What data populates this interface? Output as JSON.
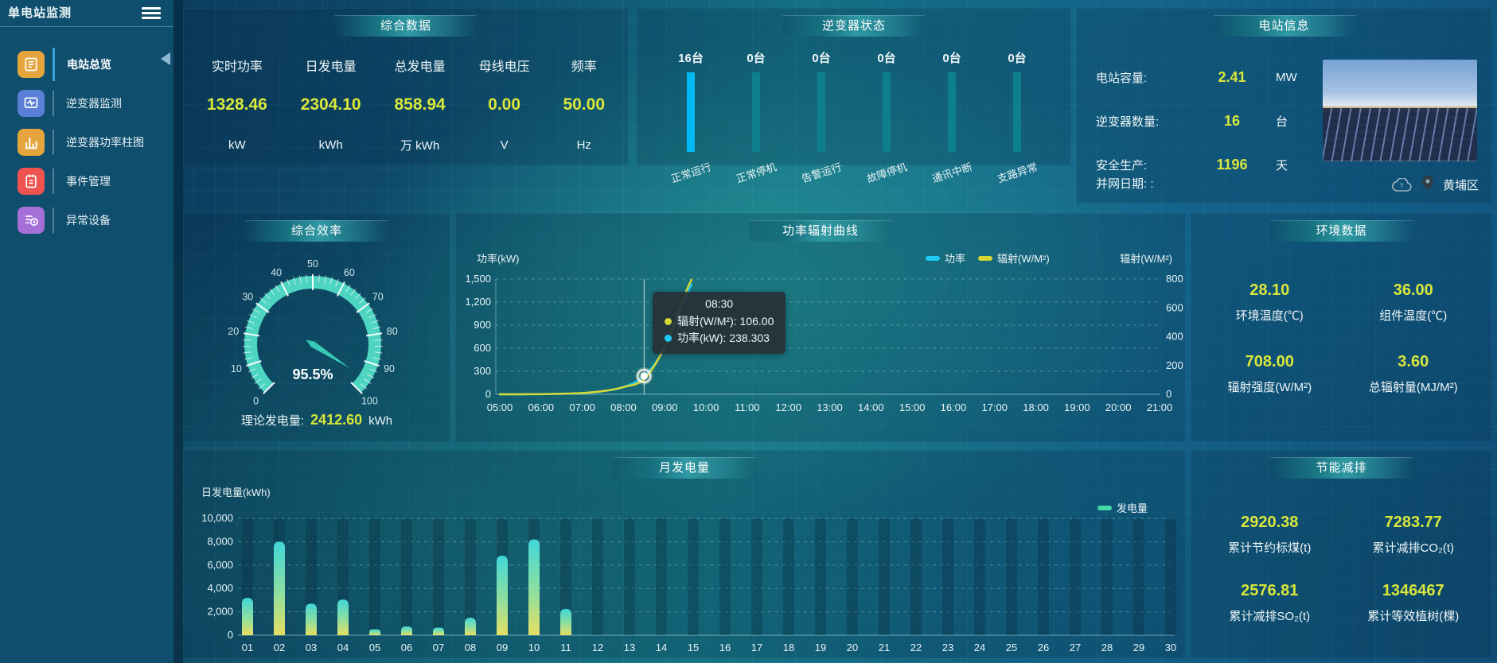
{
  "app": {
    "title": "单电站监测"
  },
  "sidebar": {
    "items": [
      {
        "id": "overview",
        "label": "电站总览",
        "icon": "doc-icon",
        "color": "#e5a43c",
        "active": true
      },
      {
        "id": "inverter-monitor",
        "label": "逆变器监测",
        "icon": "monitor-icon",
        "color": "#5a7fd6",
        "active": false
      },
      {
        "id": "inverter-power",
        "label": "逆变器功率柱图",
        "icon": "barchart-icon",
        "color": "#e5a43c",
        "active": false
      },
      {
        "id": "event-manage",
        "label": "事件管理",
        "icon": "notebook-icon",
        "color": "#ef5350",
        "active": false
      },
      {
        "id": "abnormal-device",
        "label": "异常设备",
        "icon": "listclock-icon",
        "color": "#a66fd8",
        "active": false
      }
    ]
  },
  "panels": {
    "summary": {
      "title": "综合数据",
      "metrics": [
        {
          "label": "实时功率",
          "value": "1328.46",
          "unit": "kW"
        },
        {
          "label": "日发电量",
          "value": "2304.10",
          "unit": "kWh"
        },
        {
          "label": "总发电量",
          "value": "858.94",
          "unit": "万 kWh"
        },
        {
          "label": "母线电压",
          "value": "0.00",
          "unit": "V"
        },
        {
          "label": "频率",
          "value": "50.00",
          "unit": "Hz"
        }
      ]
    },
    "inverter_status": {
      "title": "逆变器状态",
      "count_suffix": "台"
    },
    "station_info": {
      "title": "电站信息",
      "rows": [
        {
          "label": "电站容量:",
          "value": "2.41",
          "unit": "MW"
        },
        {
          "label": "逆变器数量:",
          "value": "16",
          "unit": "台"
        },
        {
          "label": "安全生产:",
          "value": "1196",
          "unit": "天"
        }
      ],
      "grid_date_label": "并网日期:  :",
      "location": "黄埔区"
    },
    "efficiency": {
      "title": "综合效率",
      "theory_label": "理论发电量:",
      "theory_value": "2412.60",
      "theory_unit": "kWh"
    },
    "power_curve": {
      "title": "功率辐射曲线",
      "y_left_label": "功率(kW)",
      "y_right_label": "辐射(W/M²)"
    },
    "environment": {
      "title": "环境数据",
      "cells": [
        {
          "value": "28.10",
          "label": "环境温度(℃)"
        },
        {
          "value": "36.00",
          "label": "组件温度(℃)"
        },
        {
          "value": "708.00",
          "label": "辐射强度(W/M²)"
        },
        {
          "value": "3.60",
          "label": "总辐射量(MJ/M²)"
        }
      ]
    },
    "monthly": {
      "title": "月发电量",
      "ylabel": "日发电量(kWh)",
      "legend_label": "发电量"
    },
    "saving": {
      "title": "节能减排",
      "cells": [
        {
          "value": "2920.38",
          "label": "累计节约标煤(t)"
        },
        {
          "value": "7283.77",
          "label": "累计减排CO₂(t)"
        },
        {
          "value": "2576.81",
          "label": "累计减排SO₂(t)"
        },
        {
          "value": "1346467",
          "label": "累计等效植树(棵)"
        }
      ]
    }
  },
  "colors": {
    "accent_yellow": "#d9e63b",
    "power_line": "#1ec9f5",
    "radiation_line": "#d6d735",
    "status_active_bar": "#00b9f2",
    "status_idle_bar": "#0e7f8d",
    "gauge_ring": "#4dd5c2",
    "bar_gradient_top": "#41d6d8",
    "bar_gradient_bottom": "#e6df62",
    "generation_legend": "#45d9a6"
  },
  "chart_data": [
    {
      "type": "gauge",
      "name": "comprehensive-efficiency",
      "value": 95.5,
      "min": 0,
      "max": 100,
      "tick_step": 10,
      "display": "95.5%",
      "color": "#4dd5c2"
    },
    {
      "type": "bar",
      "name": "inverter-status",
      "categories": [
        "正常运行",
        "正常停机",
        "告警运行",
        "故障停机",
        "通讯中断",
        "支路异常"
      ],
      "values": [
        16,
        0,
        0,
        0,
        0,
        0
      ],
      "unit": "台",
      "active_color": "#00b9f2",
      "idle_color": "#0e7f8d"
    },
    {
      "type": "line",
      "name": "power-radiation-curve",
      "title": "功率辐射曲线",
      "x_ticks": [
        "05:00",
        "06:00",
        "07:00",
        "08:00",
        "09:00",
        "10:00",
        "11:00",
        "12:00",
        "13:00",
        "14:00",
        "15:00",
        "16:00",
        "17:00",
        "18:00",
        "19:00",
        "20:00",
        "21:00"
      ],
      "ylim_left": [
        0,
        1500
      ],
      "yticks_left": [
        "0",
        "300",
        "600",
        "900",
        "1,200",
        "1,500"
      ],
      "ylim_right": [
        0,
        800
      ],
      "yticks_right": [
        "0",
        "200",
        "400",
        "600",
        "800"
      ],
      "series": [
        {
          "name": "功率",
          "axis": "left",
          "color": "#1ec9f5",
          "points": [
            [
              5,
              0
            ],
            [
              5.5,
              0.5
            ],
            [
              6,
              2
            ],
            [
              6.5,
              6
            ],
            [
              7,
              16
            ],
            [
              7.5,
              40
            ],
            [
              8,
              95
            ],
            [
              8.5,
              238.303
            ],
            [
              9,
              600
            ],
            [
              9.5,
              1250
            ],
            [
              9.65,
              1430
            ]
          ]
        },
        {
          "name": "辐射(W/M²)",
          "axis": "right",
          "color": "#d6d735",
          "points": [
            [
              5,
              0
            ],
            [
              5.5,
              0.3
            ],
            [
              6,
              1
            ],
            [
              6.5,
              4
            ],
            [
              7,
              9
            ],
            [
              7.5,
              22
            ],
            [
              8,
              50
            ],
            [
              8.5,
              106
            ],
            [
              9,
              330
            ],
            [
              9.5,
              700
            ],
            [
              9.65,
              795
            ]
          ]
        }
      ],
      "tooltip": {
        "time": "08:30",
        "x_value": 8.5,
        "items": [
          {
            "name": "辐射(W/M²)",
            "value": "106.00",
            "color": "#d6d735"
          },
          {
            "name": "功率(kW)",
            "value": "238.303",
            "color": "#1ec9f5"
          }
        ]
      }
    },
    {
      "type": "bar",
      "name": "monthly-generation",
      "title": "月发电量",
      "ylabel": "日发电量(kWh)",
      "categories": [
        "01",
        "02",
        "03",
        "04",
        "05",
        "06",
        "07",
        "08",
        "09",
        "10",
        "11",
        "12",
        "13",
        "14",
        "15",
        "16",
        "17",
        "18",
        "19",
        "20",
        "21",
        "22",
        "23",
        "24",
        "25",
        "26",
        "27",
        "28",
        "29",
        "30"
      ],
      "values": [
        3200,
        8000,
        2700,
        3050,
        500,
        750,
        650,
        1500,
        6800,
        8200,
        2250,
        0,
        0,
        0,
        0,
        0,
        0,
        0,
        0,
        0,
        0,
        0,
        0,
        0,
        0,
        0,
        0,
        0,
        0,
        0
      ],
      "ylim": [
        0,
        10000
      ],
      "yticks": [
        "0",
        "2,000",
        "4,000",
        "6,000",
        "8,000",
        "10,000"
      ],
      "legend": "发电量"
    }
  ]
}
